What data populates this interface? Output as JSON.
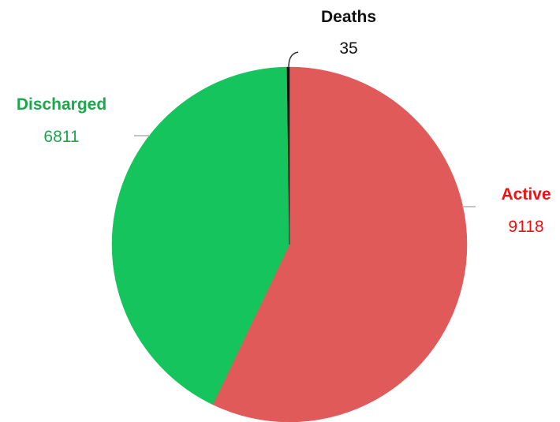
{
  "chart_data": {
    "type": "pie",
    "title": "",
    "slices": [
      {
        "label": "Active",
        "value": 9118,
        "color": "#e05a5a",
        "label_color": "#ee1111"
      },
      {
        "label": "Discharged",
        "value": 6811,
        "color": "#15c45c",
        "label_color": "#1aa84c"
      },
      {
        "label": "Deaths",
        "value": 35,
        "color": "#111111",
        "label_color": "#111111"
      }
    ],
    "legend": "none",
    "data_labels": "outside-with-leader-lines"
  }
}
